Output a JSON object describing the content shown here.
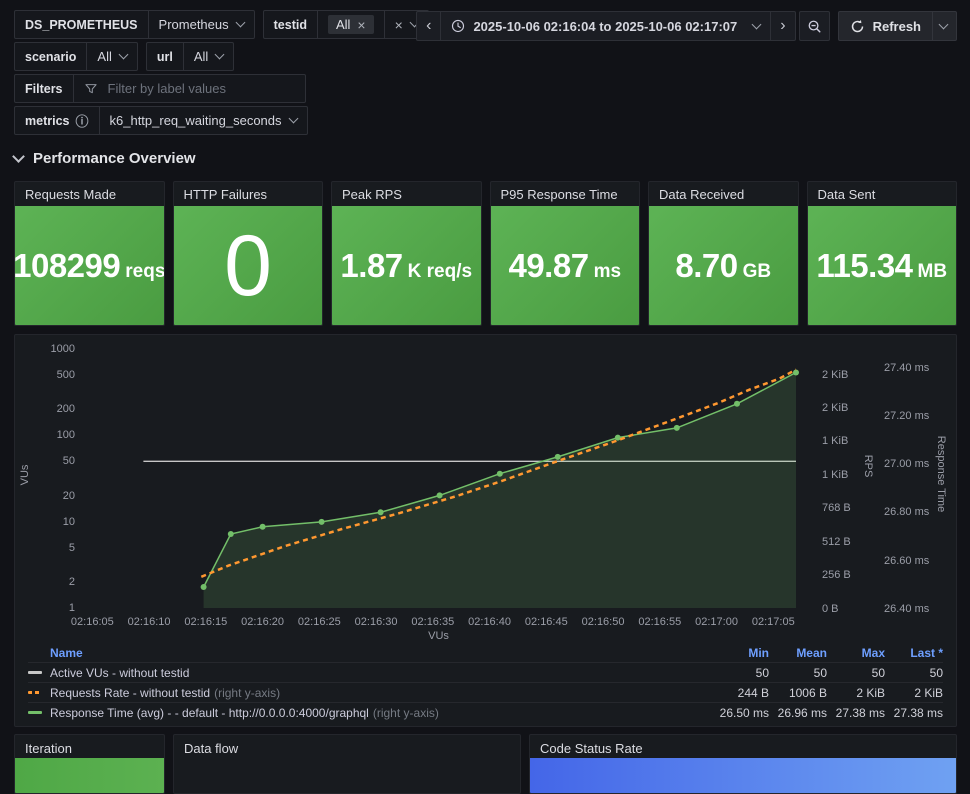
{
  "toolbar": {
    "datasource": {
      "label": "DS_PROMETHEUS",
      "value": "Prometheus"
    },
    "testid": {
      "label": "testid",
      "chip": "All"
    },
    "scenario": {
      "label": "scenario",
      "value": "All"
    },
    "url": {
      "label": "url",
      "value": "All"
    },
    "filters": {
      "label": "Filters",
      "placeholder": "Filter by label values"
    },
    "metrics": {
      "label": "metrics",
      "value": "k6_http_req_waiting_seconds"
    },
    "time_range": "2025-10-06 02:16:04 to 2025-10-06 02:17:07",
    "refresh_label": "Refresh"
  },
  "icons": {
    "close": "×",
    "prev": "‹",
    "next": "›",
    "info": "ⓘ"
  },
  "section": {
    "title": "Performance Overview"
  },
  "colors": {
    "accent_blue": "#6E9FFF",
    "series_green": "#73BF69",
    "series_orange": "#FF9830",
    "series_gray": "#C7C7C7",
    "stat_green": [
      "#5DB355",
      "#4A9C41"
    ]
  },
  "stats": [
    {
      "title": "Requests Made",
      "value": "108299",
      "unit": "reqs"
    },
    {
      "title": "HTTP Failures",
      "value": "0",
      "unit": ""
    },
    {
      "title": "Peak RPS",
      "value": "1.87",
      "unit": "K req/s"
    },
    {
      "title": "P95 Response Time",
      "value": "49.87",
      "unit": "ms"
    },
    {
      "title": "Data Received",
      "value": "8.70",
      "unit": "GB"
    },
    {
      "title": "Data Sent",
      "value": "115.34",
      "unit": "MB"
    }
  ],
  "chart_data": {
    "type": "line",
    "x_axis": {
      "title": "VUs",
      "start_time": "02:16:04",
      "end_time": "02:17:07",
      "domain_seconds": [
        0,
        63
      ],
      "ticks": [
        {
          "t": 1,
          "label": "02:16:05"
        },
        {
          "t": 6,
          "label": "02:16:10"
        },
        {
          "t": 11,
          "label": "02:16:15"
        },
        {
          "t": 16,
          "label": "02:16:20"
        },
        {
          "t": 21,
          "label": "02:16:25"
        },
        {
          "t": 26,
          "label": "02:16:30"
        },
        {
          "t": 31,
          "label": "02:16:35"
        },
        {
          "t": 36,
          "label": "02:16:40"
        },
        {
          "t": 41,
          "label": "02:16:45"
        },
        {
          "t": 46,
          "label": "02:16:50"
        },
        {
          "t": 51,
          "label": "02:16:55"
        },
        {
          "t": 56,
          "label": "02:17:00"
        },
        {
          "t": 61,
          "label": "02:17:05"
        }
      ]
    },
    "y_left": {
      "title": "VUs",
      "scale": "log10",
      "ticks": [
        1000,
        500,
        200,
        100,
        50,
        20,
        10,
        5,
        2,
        1
      ]
    },
    "y_right_rps": {
      "title": "RPS",
      "ticks": [
        {
          "bytes": 1792,
          "label": "2 KiB"
        },
        {
          "bytes": 1536,
          "label": "2 KiB"
        },
        {
          "bytes": 1280,
          "label": "1 KiB"
        },
        {
          "bytes": 1024,
          "label": "1 KiB"
        },
        {
          "bytes": 768,
          "label": "768 B"
        },
        {
          "bytes": 512,
          "label": "512 B"
        },
        {
          "bytes": 256,
          "label": "256 B"
        },
        {
          "bytes": 0,
          "label": "0 B"
        }
      ]
    },
    "y_right_rt": {
      "title": "Response Time",
      "ticks": [
        {
          "ms": 27.4,
          "label": "27.40 ms"
        },
        {
          "ms": 27.2,
          "label": "27.20 ms"
        },
        {
          "ms": 27.0,
          "label": "27.00 ms"
        },
        {
          "ms": 26.8,
          "label": "26.80 ms"
        },
        {
          "ms": 26.6,
          "label": "26.60 ms"
        },
        {
          "ms": 26.4,
          "label": "26.40 ms"
        }
      ]
    },
    "series": [
      {
        "name": "Active VUs - without testid",
        "axis": "left",
        "color": "#C7C7C7",
        "style": "solid",
        "width": 1.3,
        "markers": false,
        "fill": false,
        "points": [
          [
            5.5,
            50
          ],
          [
            63,
            50
          ]
        ]
      },
      {
        "name": "Response Time (avg) - - default - http://0.0.0.0:4000/graphql",
        "axis": "rt",
        "color": "#73BF69",
        "style": "solid",
        "width": 1.5,
        "markers": true,
        "fill": true,
        "points": [
          [
            10.8,
            26.49
          ],
          [
            13.2,
            26.71
          ],
          [
            16,
            26.74
          ],
          [
            21.2,
            26.76
          ],
          [
            26.4,
            26.8
          ],
          [
            31.6,
            26.87
          ],
          [
            36.9,
            26.96
          ],
          [
            42,
            27.03
          ],
          [
            47.3,
            27.11
          ],
          [
            52.5,
            27.15
          ],
          [
            57.8,
            27.25
          ],
          [
            63,
            27.38
          ]
        ]
      },
      {
        "name": "Requests Rate - without testid",
        "axis": "rps",
        "color": "#FF9830",
        "style": "dashed",
        "width": 2.5,
        "markers": false,
        "fill": false,
        "points": [
          [
            10.6,
            244
          ],
          [
            13,
            330
          ],
          [
            18,
            480
          ],
          [
            23,
            610
          ],
          [
            28,
            730
          ],
          [
            33,
            860
          ],
          [
            37,
            975
          ],
          [
            42,
            1130
          ],
          [
            47,
            1280
          ],
          [
            52,
            1440
          ],
          [
            56,
            1570
          ],
          [
            59,
            1680
          ],
          [
            61.5,
            1760
          ],
          [
            63,
            1830
          ]
        ]
      }
    ]
  },
  "legend": {
    "columns": [
      "Name",
      "Min",
      "Mean",
      "Max",
      "Last *"
    ],
    "rows": [
      {
        "name": "Active VUs - without testid",
        "suffix": "",
        "color": "#C7C7C7",
        "dashed": false,
        "min": "50",
        "mean": "50",
        "max": "50",
        "last": "50"
      },
      {
        "name": "Requests Rate - without testid",
        "suffix": "(right y-axis)",
        "color": "#FF9830",
        "dashed": true,
        "min": "244 B",
        "mean": "1006 B",
        "max": "2 KiB",
        "last": "2 KiB"
      },
      {
        "name": "Response Time (avg) - - default - http://0.0.0.0:4000/graphql",
        "suffix": "(right y-axis)",
        "color": "#73BF69",
        "dashed": false,
        "min": "26.50 ms",
        "mean": "26.96 ms",
        "max": "27.38 ms",
        "last": "27.38 ms"
      }
    ]
  },
  "bottom_panels": [
    {
      "title": "Iteration",
      "bar_colors": [
        "#4FA846",
        "#5CB151"
      ]
    },
    {
      "title": "Data flow",
      "bar_colors": null
    },
    {
      "title": "Code Status Rate",
      "bar_colors": [
        "#4466E8",
        "#6FA1F2"
      ]
    }
  ]
}
